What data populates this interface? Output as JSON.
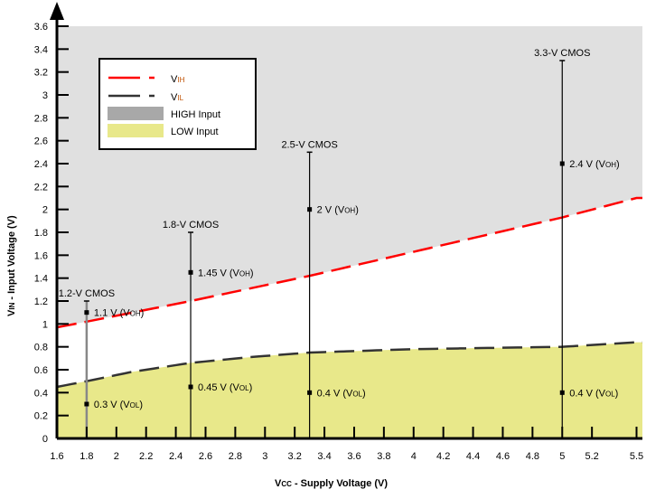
{
  "chart_data": {
    "type": "line",
    "xlabel": "VCC - Supply Voltage (V)",
    "xlabel_main": "V",
    "xlabel_sub": "CC",
    "xlabel_rest": " - Supply Voltage (V)",
    "ylabel_main": "V",
    "ylabel_sub": "IN",
    "ylabel_rest": " - Input Voltage (V)",
    "xlim": [
      1.6,
      5.5
    ],
    "ylim": [
      0,
      3.6
    ],
    "x_ticks": [
      1.6,
      1.8,
      2,
      2.2,
      2.4,
      2.6,
      2.8,
      3,
      3.2,
      3.4,
      3.6,
      3.8,
      4,
      4.2,
      4.4,
      4.6,
      4.8,
      5,
      5.2,
      5.5
    ],
    "y_ticks": [
      0,
      0.2,
      0.4,
      0.6,
      0.8,
      1,
      1.2,
      1.4,
      1.6,
      1.8,
      2,
      2.2,
      2.4,
      2.6,
      2.8,
      3,
      3.2,
      3.4,
      3.6
    ],
    "legend_position": "top-left",
    "series": [
      {
        "name": "VIH",
        "label_main": "V",
        "label_sub": "IH",
        "color": "#ff0000",
        "style": "dashed",
        "x": [
          1.6,
          1.8,
          2.5,
          3.3,
          5,
          5.5
        ],
        "y": [
          0.97,
          1.02,
          1.2,
          1.42,
          1.93,
          2.1
        ]
      },
      {
        "name": "VIL",
        "label_main": "V",
        "label_sub": "IL",
        "color": "#333333",
        "style": "dashed",
        "x": [
          1.6,
          1.8,
          2.1,
          2.5,
          2.9,
          3.3,
          4,
          5,
          5.5
        ],
        "y": [
          0.45,
          0.5,
          0.58,
          0.66,
          0.71,
          0.75,
          0.78,
          0.8,
          0.84
        ]
      }
    ],
    "regions": [
      {
        "name": "HIGH Input",
        "color": "#e0e0e0",
        "legend_color": "#a8a8a8",
        "bounds": "VIH to 3.6"
      },
      {
        "name": "LOW Input",
        "color": "#e8e88a",
        "legend_color": "#e8e88a",
        "bounds": "0 to VIL"
      }
    ],
    "standards": [
      {
        "label": "1.2-V CMOS",
        "vcc": 1.8,
        "top": 1.2,
        "color": "#888888",
        "points": [
          {
            "v": 1.1,
            "text": "1.1 V (V",
            "sub": "OH",
            "end": ")"
          },
          {
            "v": 0.3,
            "text": "0.3 V (V",
            "sub": "OL",
            "end": ")"
          }
        ]
      },
      {
        "label": "1.8-V CMOS",
        "vcc": 2.5,
        "top": 1.8,
        "color": "#000000",
        "points": [
          {
            "v": 1.45,
            "text": "1.45 V (V",
            "sub": "OH",
            "end": ")"
          },
          {
            "v": 0.45,
            "text": "0.45 V (V",
            "sub": "OL",
            "end": ")"
          }
        ]
      },
      {
        "label": "2.5-V CMOS",
        "vcc": 3.3,
        "top": 2.5,
        "color": "#000000",
        "points": [
          {
            "v": 2,
            "text": "2 V (V",
            "sub": "OH",
            "end": ")"
          },
          {
            "v": 0.4,
            "text": "0.4 V (V",
            "sub": "OL",
            "end": ")"
          }
        ]
      },
      {
        "label": "3.3-V CMOS",
        "vcc": 5,
        "top": 3.3,
        "color": "#000000",
        "points": [
          {
            "v": 2.4,
            "text": "2.4 V (V",
            "sub": "OH",
            "end": ")"
          },
          {
            "v": 0.4,
            "text": "0.4 V (V",
            "sub": "OL",
            "end": ")"
          }
        ]
      }
    ]
  }
}
